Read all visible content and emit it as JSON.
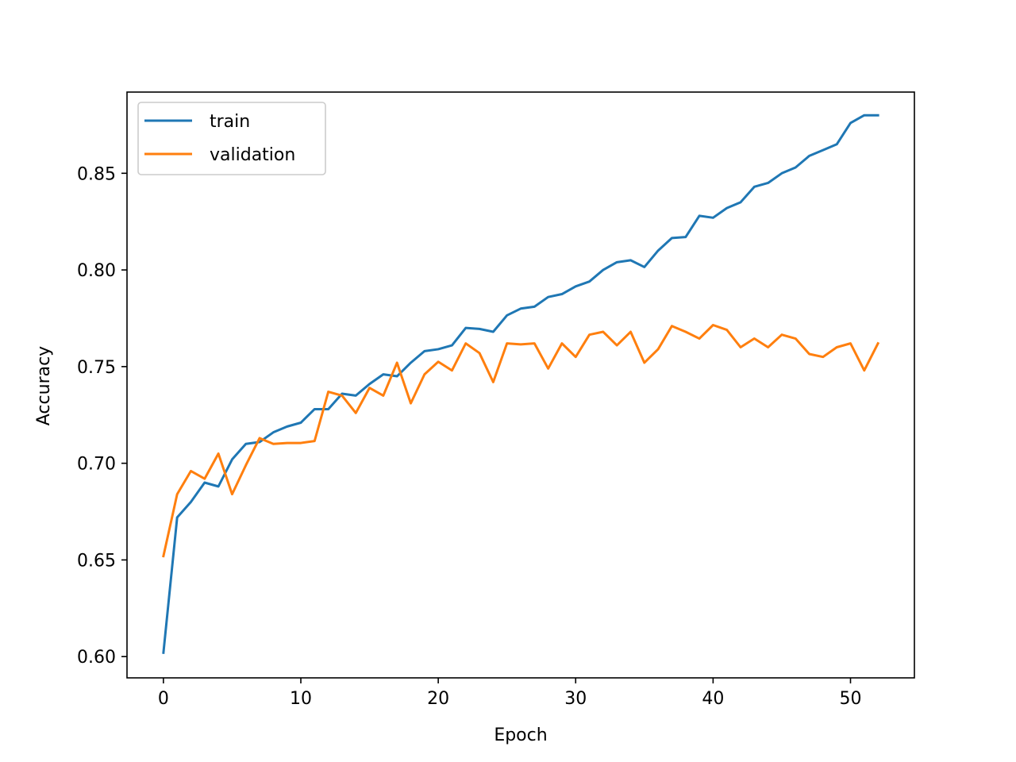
{
  "chart_data": {
    "type": "line",
    "xlabel": "Epoch",
    "ylabel": "Accuracy",
    "xlim": [
      -2.65,
      54.65
    ],
    "ylim": [
      0.589,
      0.892
    ],
    "xticks": [
      0,
      10,
      20,
      30,
      40,
      50
    ],
    "yticks": [
      0.6,
      0.65,
      0.7,
      0.75,
      0.8,
      0.85
    ],
    "grid": false,
    "legend_position": "top-left",
    "series": [
      {
        "name": "train",
        "color": "#1f77b4",
        "x": [
          0,
          1,
          2,
          3,
          4,
          5,
          6,
          7,
          8,
          9,
          10,
          11,
          12,
          13,
          14,
          15,
          16,
          17,
          18,
          19,
          20,
          21,
          22,
          23,
          24,
          25,
          26,
          27,
          28,
          29,
          30,
          31,
          32,
          33,
          34,
          35,
          36,
          37,
          38,
          39,
          40,
          41,
          42,
          43,
          44,
          45,
          46,
          47,
          48,
          49,
          50,
          51,
          52
        ],
        "values": [
          0.602,
          0.672,
          0.68,
          0.69,
          0.688,
          0.702,
          0.71,
          0.711,
          0.716,
          0.719,
          0.721,
          0.728,
          0.728,
          0.736,
          0.735,
          0.741,
          0.746,
          0.745,
          0.752,
          0.758,
          0.759,
          0.761,
          0.77,
          0.7695,
          0.768,
          0.7765,
          0.78,
          0.781,
          0.786,
          0.7875,
          0.7915,
          0.794,
          0.8,
          0.804,
          0.805,
          0.8015,
          0.81,
          0.8165,
          0.817,
          0.828,
          0.827,
          0.832,
          0.835,
          0.843,
          0.845,
          0.85,
          0.853,
          0.859,
          0.862,
          0.865,
          0.876,
          0.88,
          0.88
        ]
      },
      {
        "name": "validation",
        "color": "#ff7f0e",
        "x": [
          0,
          1,
          2,
          3,
          4,
          5,
          6,
          7,
          8,
          9,
          10,
          11,
          12,
          13,
          14,
          15,
          16,
          17,
          18,
          19,
          20,
          21,
          22,
          23,
          24,
          25,
          26,
          27,
          28,
          29,
          30,
          31,
          32,
          33,
          34,
          35,
          36,
          37,
          38,
          39,
          40,
          41,
          42,
          43,
          44,
          45,
          46,
          47,
          48,
          49,
          50,
          51,
          52
        ],
        "values": [
          0.652,
          0.684,
          0.696,
          0.692,
          0.705,
          0.684,
          0.699,
          0.713,
          0.71,
          0.7105,
          0.7105,
          0.7115,
          0.737,
          0.735,
          0.726,
          0.739,
          0.735,
          0.752,
          0.731,
          0.746,
          0.7525,
          0.748,
          0.762,
          0.757,
          0.742,
          0.762,
          0.7615,
          0.762,
          0.749,
          0.762,
          0.755,
          0.7665,
          0.768,
          0.761,
          0.768,
          0.752,
          0.759,
          0.771,
          0.768,
          0.7645,
          0.7715,
          0.769,
          0.76,
          0.7645,
          0.76,
          0.7665,
          0.7645,
          0.7565,
          0.755,
          0.76,
          0.762,
          0.748,
          0.762
        ]
      }
    ]
  }
}
